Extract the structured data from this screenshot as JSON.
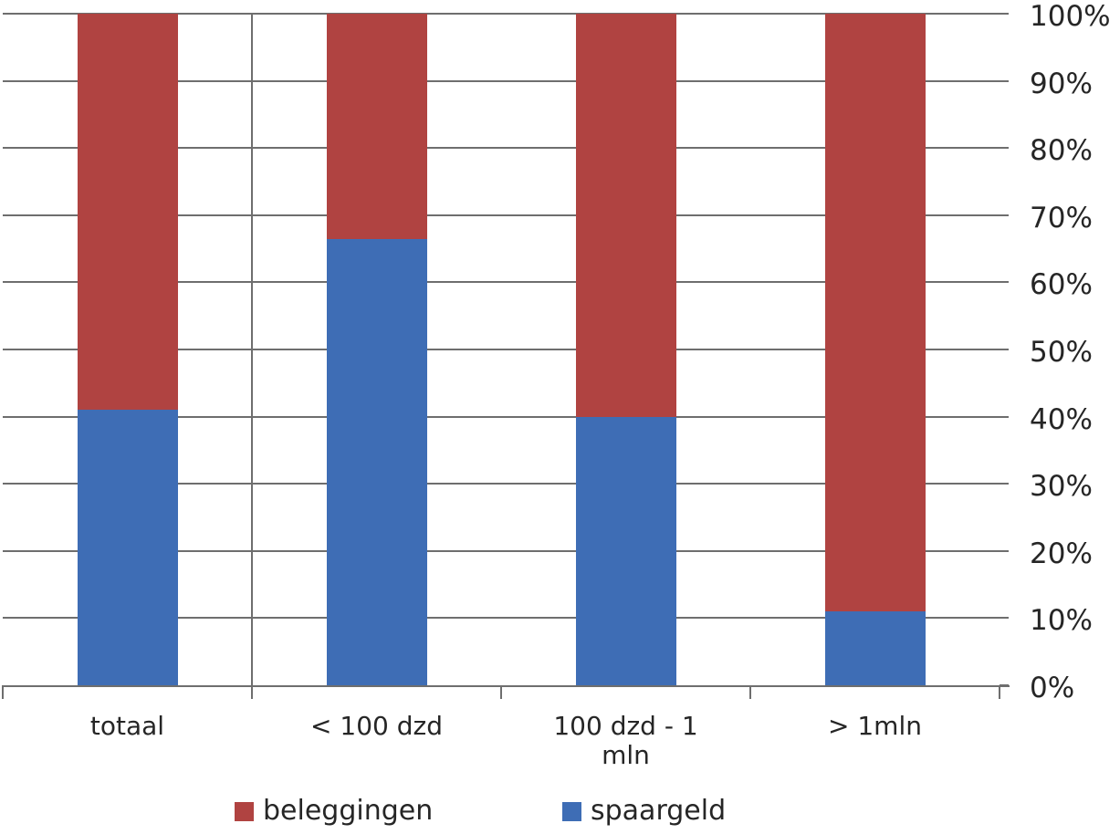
{
  "chart_data": {
    "type": "bar",
    "stacked": true,
    "percent_stacked": true,
    "title": "",
    "xlabel": "",
    "ylabel": "",
    "categories": [
      "totaal",
      "< 100 dzd",
      "100 dzd - 1\nmln",
      "> 1mln"
    ],
    "series": [
      {
        "name": "spaargeld",
        "color": "#3E6DB5",
        "values": [
          41,
          66.5,
          40,
          11
        ]
      },
      {
        "name": "beleggingen",
        "color": "#B04341",
        "values": [
          59,
          33.5,
          60,
          89
        ]
      }
    ],
    "y_axis": {
      "side": "right",
      "min": 0,
      "max": 100,
      "step": 10,
      "tick_labels": [
        "0%",
        "10%",
        "20%",
        "30%",
        "40%",
        "50%",
        "60%",
        "70%",
        "80%",
        "90%",
        "100%"
      ]
    },
    "legend": {
      "position": "bottom",
      "items": [
        {
          "label": "beleggingen",
          "color": "#B04341"
        },
        {
          "label": "spaargeld",
          "color": "#3E6DB5"
        }
      ]
    },
    "style": {
      "background": "#FFFFFF",
      "grid_color": "#6E6E6E",
      "text_color": "#262626",
      "grid_horizontal": true,
      "separator_after_category": 0
    }
  }
}
